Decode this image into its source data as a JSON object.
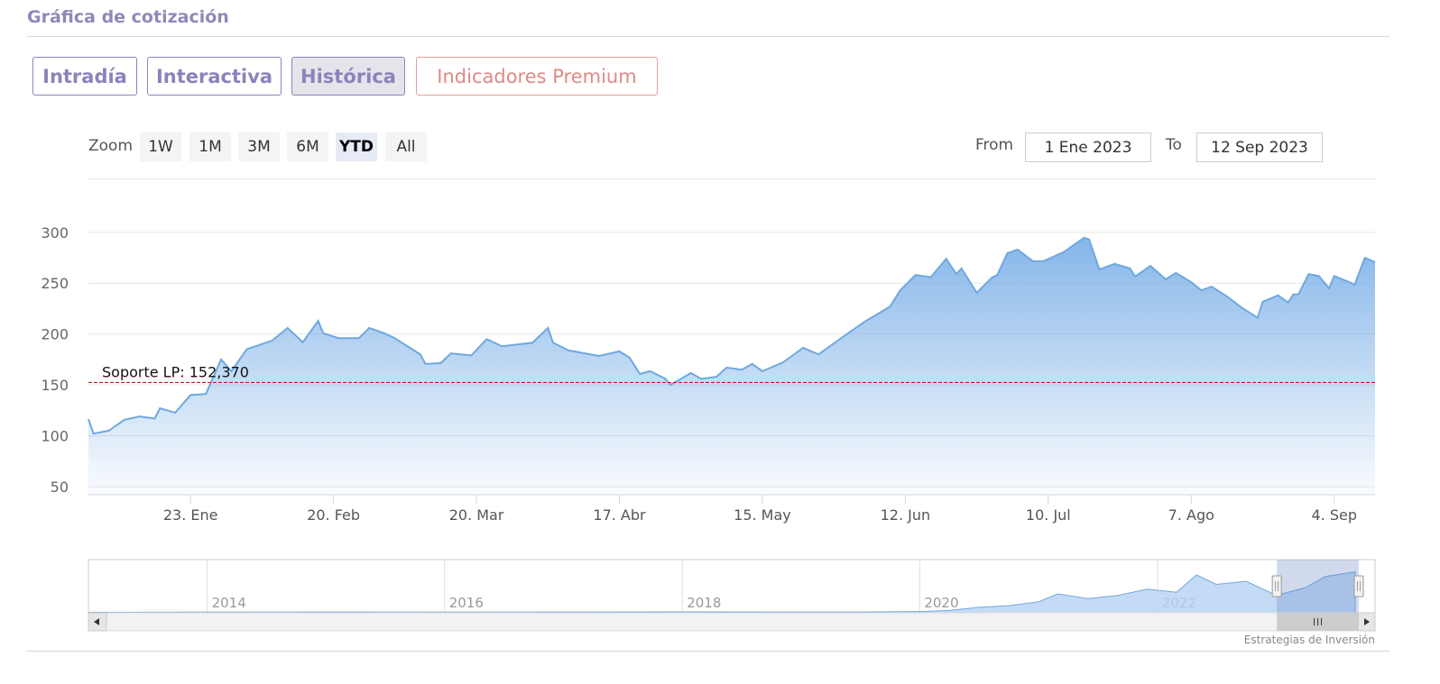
{
  "header": {
    "title": "Gráfica de cotización"
  },
  "tabs": [
    "Intradía",
    "Interactiva",
    "Histórica",
    "Indicadores Premium"
  ],
  "active_tab": 2,
  "zoom": {
    "label": "Zoom",
    "buttons": [
      "1W",
      "1M",
      "3M",
      "6M",
      "YTD",
      "All"
    ],
    "selected": 4
  },
  "range": {
    "from_label": "From",
    "from": "1 Ene 2023",
    "to_label": "To",
    "to": "12 Sep 2023"
  },
  "chart_data": {
    "type": "area",
    "color": "#6fa8e0",
    "x": [
      "2023-01-03",
      "2023-01-04",
      "2023-01-07",
      "2023-01-10",
      "2023-01-13",
      "2023-01-16",
      "2023-01-17",
      "2023-01-20",
      "2023-01-23",
      "2023-01-26",
      "2023-01-29",
      "2023-01-31",
      "2023-02-03",
      "2023-02-08",
      "2023-02-11",
      "2023-02-14",
      "2023-02-17",
      "2023-02-18",
      "2023-02-21",
      "2023-02-25",
      "2023-02-27",
      "2023-03-02",
      "2023-03-04",
      "2023-03-09",
      "2023-03-10",
      "2023-03-13",
      "2023-03-15",
      "2023-03-19",
      "2023-03-22",
      "2023-03-25",
      "2023-03-31",
      "2023-04-03",
      "2023-04-04",
      "2023-04-07",
      "2023-04-13",
      "2023-04-17",
      "2023-04-19",
      "2023-04-21",
      "2023-04-23",
      "2023-04-26",
      "2023-04-27",
      "2023-05-01",
      "2023-05-03",
      "2023-05-06",
      "2023-05-08",
      "2023-05-11",
      "2023-05-13",
      "2023-05-15",
      "2023-05-19",
      "2023-05-23",
      "2023-05-26",
      "2023-05-31",
      "2023-06-04",
      "2023-06-09",
      "2023-06-11",
      "2023-06-14",
      "2023-06-17",
      "2023-06-20",
      "2023-06-22",
      "2023-06-23",
      "2023-06-26",
      "2023-06-29",
      "2023-06-30",
      "2023-07-02",
      "2023-07-04",
      "2023-07-07",
      "2023-07-09",
      "2023-07-13",
      "2023-07-17",
      "2023-07-18",
      "2023-07-20",
      "2023-07-23",
      "2023-07-26",
      "2023-07-27",
      "2023-07-30",
      "2023-08-02",
      "2023-08-04",
      "2023-08-07",
      "2023-08-09",
      "2023-08-11",
      "2023-08-14",
      "2023-08-17",
      "2023-08-20",
      "2023-08-21",
      "2023-08-24",
      "2023-08-26",
      "2023-08-27",
      "2023-08-28",
      "2023-08-30",
      "2023-09-01",
      "2023-09-03",
      "2023-09-04",
      "2023-09-07",
      "2023-09-08",
      "2023-09-10",
      "2023-09-12"
    ],
    "values": [
      116.5,
      102,
      105,
      115.6,
      119,
      117,
      127,
      122.7,
      140,
      141,
      175,
      163.5,
      185,
      193.6,
      206,
      192,
      213,
      200.7,
      196,
      196,
      206,
      200.7,
      196,
      180,
      170.6,
      171.5,
      181,
      179,
      195,
      188,
      191.5,
      206,
      191.5,
      184,
      178.5,
      183,
      176.8,
      160.8,
      163.5,
      156,
      150,
      161.7,
      156,
      158,
      167,
      165,
      170.6,
      163.5,
      172,
      186.5,
      180,
      198,
      212,
      227,
      243,
      258,
      256,
      274,
      259,
      264.5,
      240.6,
      255.7,
      258,
      279.6,
      283,
      271.6,
      271.6,
      280.5,
      294.7,
      293,
      263.6,
      269,
      264.5,
      256.6,
      267,
      253.9,
      260,
      251,
      243,
      246.6,
      237,
      225.5,
      216,
      231.7,
      238,
      231,
      239,
      239,
      259,
      257,
      245,
      257,
      251,
      248.6,
      275,
      270.7
    ],
    "xlim": [
      "2023-01-03",
      "2023-09-12"
    ],
    "xticks": [
      {
        "value": "2023-01-23",
        "label": "23. Ene"
      },
      {
        "value": "2023-02-20",
        "label": "20. Feb"
      },
      {
        "value": "2023-03-20",
        "label": "20. Mar"
      },
      {
        "value": "2023-04-17",
        "label": "17. Abr"
      },
      {
        "value": "2023-05-15",
        "label": "15. May"
      },
      {
        "value": "2023-06-12",
        "label": "12. Jun"
      },
      {
        "value": "2023-07-10",
        "label": "10. Jul"
      },
      {
        "value": "2023-08-07",
        "label": "7. Ago"
      },
      {
        "value": "2023-09-04",
        "label": "4. Sep"
      }
    ],
    "ylim": [
      42,
      353
    ],
    "yticks": [
      50,
      100,
      150,
      200,
      250,
      300
    ],
    "grid": true,
    "plot_line": {
      "label": "Soporte LP: 152,370",
      "value": 152.37,
      "color": "#b22222"
    },
    "navigator": {
      "x": [
        "2013-01",
        "2014-01",
        "2015-01",
        "2016-01",
        "2017-01",
        "2018-01",
        "2019-01",
        "2019-07",
        "2020-01",
        "2020-04",
        "2020-07",
        "2020-10",
        "2021-01",
        "2021-03",
        "2021-06",
        "2021-09",
        "2021-12",
        "2022-03",
        "2022-05",
        "2022-07",
        "2022-10",
        "2023-01",
        "2023-04",
        "2023-06",
        "2023-09"
      ],
      "values": [
        3,
        4,
        5,
        4,
        5,
        6,
        5,
        5,
        8,
        15,
        35,
        45,
        70,
        120,
        90,
        110,
        150,
        130,
        240,
        180,
        200,
        110,
        160,
        230,
        260
      ],
      "xlim": [
        "2013-01",
        "2023-11"
      ],
      "ylim": [
        0,
        320
      ],
      "xticks": [
        {
          "value": "2014-01",
          "label": "2014"
        },
        {
          "value": "2016-01",
          "label": "2016"
        },
        {
          "value": "2018-01",
          "label": "2018"
        },
        {
          "value": "2020-01",
          "label": "2020"
        },
        {
          "value": "2022-01",
          "label": "2022"
        }
      ]
    }
  },
  "credits": "Estrategias de Inversión"
}
